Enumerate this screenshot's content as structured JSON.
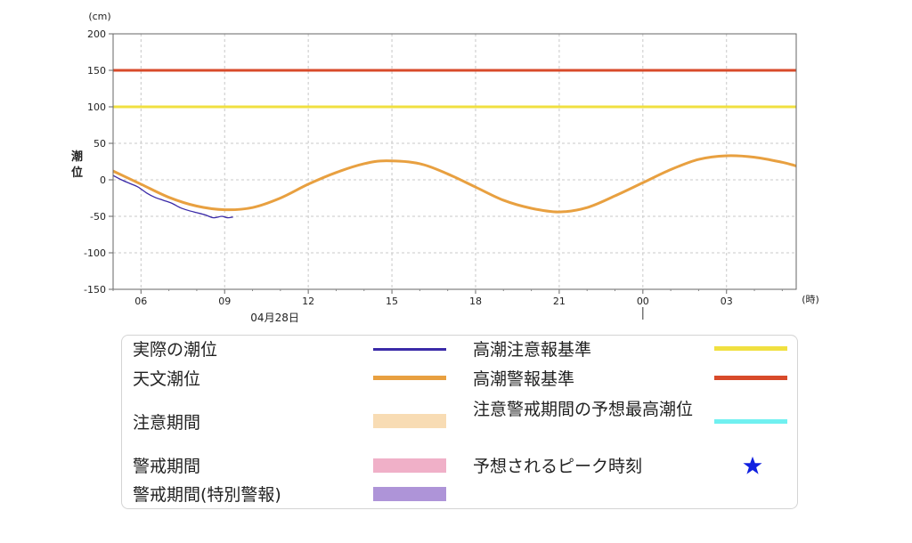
{
  "chart_data": {
    "type": "line",
    "y_unit": "(cm)",
    "x_unit": "(時)",
    "ylabel": "潮位",
    "ylim": [
      -150,
      200
    ],
    "yticks": [
      200,
      150,
      100,
      50,
      0,
      -50,
      -100,
      -150
    ],
    "xlim_hours": [
      5.0,
      29.5
    ],
    "xticks": [
      {
        "hour": 6,
        "label": "06"
      },
      {
        "hour": 9,
        "label": "09"
      },
      {
        "hour": 12,
        "label": "12"
      },
      {
        "hour": 15,
        "label": "15"
      },
      {
        "hour": 18,
        "label": "18"
      },
      {
        "hour": 21,
        "label": "21"
      },
      {
        "hour": 24,
        "label": "00"
      },
      {
        "hour": 27,
        "label": "03"
      }
    ],
    "date_label": {
      "hour": 10.8,
      "text": "04月28日"
    },
    "day_divider_hour": 24,
    "grid": true,
    "series": [
      {
        "name": "天文潮位",
        "color": "#e8a040",
        "x": [
          5.0,
          6.0,
          7.0,
          8.0,
          9.0,
          10.0,
          11.0,
          12.0,
          13.0,
          14.0,
          14.8,
          16.0,
          17.0,
          18.0,
          19.0,
          20.0,
          21.0,
          22.0,
          23.0,
          24.0,
          25.0,
          26.0,
          27.0,
          28.0,
          29.0,
          29.5
        ],
        "y": [
          12,
          -6,
          -24,
          -36,
          -41,
          -38,
          -25,
          -6,
          10,
          22,
          26,
          22,
          8,
          -10,
          -28,
          -39,
          -44,
          -38,
          -22,
          -4,
          14,
          28,
          33,
          31,
          24,
          19
        ]
      },
      {
        "name": "実際の潮位",
        "color": "#3a2aa8",
        "x": [
          5.0,
          5.3,
          5.6,
          5.9,
          6.2,
          6.5,
          6.8,
          7.1,
          7.4,
          7.7,
          8.0,
          8.3,
          8.6,
          8.9,
          9.1,
          9.3
        ],
        "y": [
          6,
          0,
          -5,
          -10,
          -18,
          -24,
          -28,
          -32,
          -38,
          -42,
          -45,
          -48,
          -52,
          -50,
          -52,
          -51
        ]
      },
      {
        "name": "高潮注意報基準",
        "color": "#f0e040",
        "x": [
          5.0,
          29.5
        ],
        "y": [
          100,
          100
        ]
      },
      {
        "name": "高潮警報基準",
        "color": "#d84a2a",
        "x": [
          5.0,
          29.5
        ],
        "y": [
          150,
          150
        ]
      }
    ]
  },
  "legend": {
    "left": [
      {
        "label": "実際の潮位",
        "kind": "line",
        "color": "#3a2aa8"
      },
      {
        "label": "天文潮位",
        "kind": "line",
        "color": "#e8a040"
      },
      {
        "label": "注意期間",
        "kind": "band",
        "color": "#f8dcb4"
      },
      {
        "label": "警戒期間",
        "kind": "band",
        "color": "#f0b0c8"
      },
      {
        "label": "警戒期間(特別警報)",
        "kind": "band",
        "color": "#ae94d8"
      }
    ],
    "right": [
      {
        "label": "高潮注意報基準",
        "kind": "line",
        "color": "#f0e040"
      },
      {
        "label": "高潮警報基準",
        "kind": "line",
        "color": "#d84a2a"
      },
      {
        "label": "注意警戒期間の予想最高潮位",
        "kind": "line",
        "color": "#70f0f0"
      },
      {
        "label": "予想されるピーク時刻",
        "kind": "star",
        "color": "#1020e0",
        "icon": "star-icon"
      }
    ]
  }
}
